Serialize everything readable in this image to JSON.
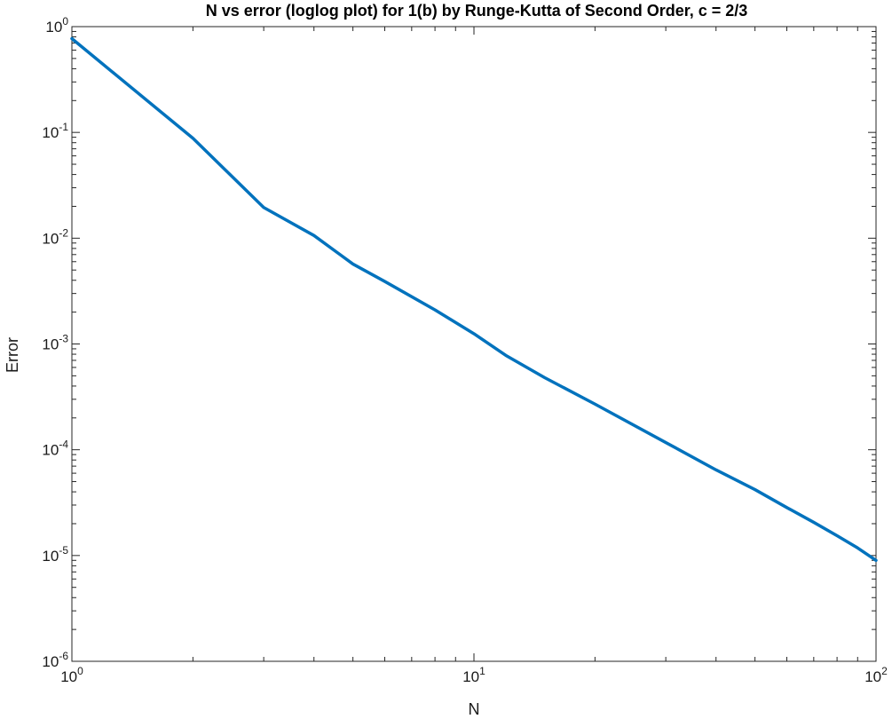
{
  "chart_data": {
    "type": "line",
    "title": "N vs error (loglog plot) for 1(b) by Runge-Kutta of Second Order, c = 2/3",
    "xlabel": "N",
    "ylabel": "Error",
    "xscale": "log",
    "yscale": "log",
    "xlim": [
      1,
      100
    ],
    "ylim": [
      1e-06,
      1
    ],
    "grid": false,
    "legend": "none",
    "x_ticks": [
      {
        "value": 1,
        "base": "10",
        "exp": "0"
      },
      {
        "value": 10,
        "base": "10",
        "exp": "1"
      },
      {
        "value": 100,
        "base": "10",
        "exp": "2"
      }
    ],
    "y_ticks": [
      {
        "value": 1,
        "base": "10",
        "exp": "0"
      },
      {
        "value": 0.1,
        "base": "10",
        "exp": "-1"
      },
      {
        "value": 0.01,
        "base": "10",
        "exp": "-2"
      },
      {
        "value": 0.001,
        "base": "10",
        "exp": "-3"
      },
      {
        "value": 0.0001,
        "base": "10",
        "exp": "-4"
      },
      {
        "value": 1e-05,
        "base": "10",
        "exp": "-5"
      },
      {
        "value": 1e-06,
        "base": "10",
        "exp": "-6"
      }
    ],
    "series": [
      {
        "color": "#0072BD",
        "x": [
          1,
          2,
          3,
          4,
          5,
          6,
          8,
          10,
          12,
          15,
          20,
          30,
          40,
          50,
          60,
          70,
          80,
          90,
          100
        ],
        "y": [
          0.77,
          0.088,
          0.0195,
          0.0106,
          0.0057,
          0.0039,
          0.0021,
          0.00125,
          0.00078,
          0.00048,
          0.00027,
          0.000117,
          6.45e-05,
          4.2e-05,
          2.84e-05,
          2.06e-05,
          1.54e-05,
          1.18e-05,
          9e-06
        ]
      }
    ]
  }
}
